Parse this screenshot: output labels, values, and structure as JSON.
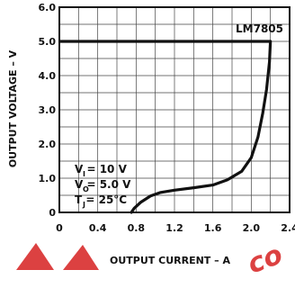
{
  "chart_data": {
    "type": "line",
    "title": "",
    "xlabel": "OUTPUT CURRENT – A",
    "ylabel": "OUTPUT VOLTAGE – V",
    "xlim": [
      0,
      2.4
    ],
    "ylim": [
      0,
      6.0
    ],
    "x_ticks": [
      "0",
      "0.4",
      "0.8",
      "1.2",
      "1.6",
      "2.0",
      "2.4"
    ],
    "y_ticks": [
      "0",
      "1.0",
      "2.0",
      "3.0",
      "4.0",
      "5.0",
      "6.0"
    ],
    "grid": true,
    "series": [
      {
        "name": "LM7805",
        "color": "#111111",
        "points": [
          [
            0.0,
            5.0
          ],
          [
            2.2,
            5.0
          ],
          [
            2.19,
            4.4
          ],
          [
            2.16,
            3.6
          ],
          [
            2.12,
            2.9
          ],
          [
            2.07,
            2.2
          ],
          [
            2.0,
            1.6
          ],
          [
            1.9,
            1.2
          ],
          [
            1.75,
            0.95
          ],
          [
            1.6,
            0.8
          ],
          [
            1.4,
            0.72
          ],
          [
            1.2,
            0.65
          ],
          [
            1.05,
            0.58
          ],
          [
            0.95,
            0.48
          ],
          [
            0.85,
            0.3
          ],
          [
            0.78,
            0.12
          ],
          [
            0.75,
            0.0
          ]
        ]
      }
    ],
    "annotations": {
      "vi_line": "V  = 10 V",
      "vi_sub": "I",
      "vo_line": "V  = 5.0 V",
      "vo_sub": "O",
      "tj_line": "T  = 25°C",
      "tj_sub": "J"
    }
  },
  "watermark": {
    "text": "co",
    "color": "#d62020"
  }
}
